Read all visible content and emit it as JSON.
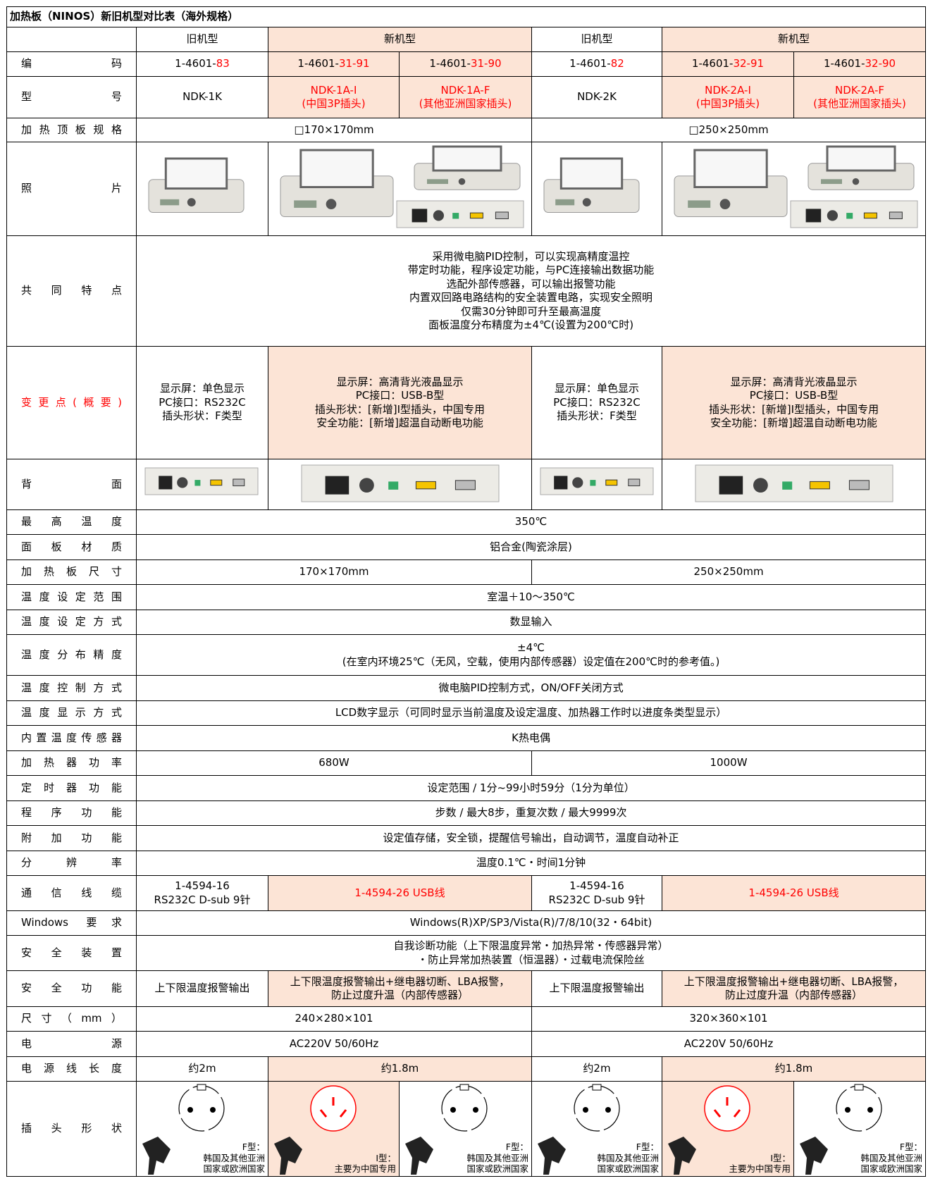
{
  "title": "加热板（NINOS）新旧机型对比表（海外规格）",
  "table": {
    "rows": [
      {
        "cells": [
          "旧机型",
          "新机型",
          "旧机型",
          "新机型"
        ]
      },
      {
        "label": "编码",
        "cells": [
          {
            "prefix": "1-4601-",
            "suffix": "83"
          },
          {
            "prefix": "1-4601-",
            "suffix": "31-91"
          },
          {
            "prefix": "1-4601-",
            "suffix": "31-90"
          },
          {
            "prefix": "1-4601-",
            "suffix": "82"
          },
          {
            "prefix": "1-4601-",
            "suffix": "32-91"
          },
          {
            "prefix": "1-4601-",
            "suffix": "32-90"
          }
        ]
      },
      {
        "label": "型号",
        "cells": [
          "NDK-1K",
          "NDK-1A-I\n(中国3P插头)",
          "NDK-1A-F\n(其他亚洲国家插头)",
          "NDK-2K",
          "NDK-2A-I\n(中国3P插头)",
          "NDK-2A-F\n(其他亚洲国家插头)"
        ]
      },
      {
        "label": "加热顶板规格",
        "cells": [
          "□170×170mm",
          "□250×250mm"
        ]
      },
      {
        "label": "照片"
      },
      {
        "label": "共同特点",
        "cells": [
          "采用微电脑PID控制，可以实现高精度温控\n带定时功能，程序设定功能，与PC连接输出数据功能\n选配外部传感器，可以输出报警功能\n内置双回路电路结构的安全装置电路，实现安全照明\n仅需30分钟即可升至最高温度\n面板温度分布精度为±4℃(设置为200℃时)"
        ]
      },
      {
        "label": "变更点(概要)",
        "cells": [
          "显示屏：单色显示\nPC接口：RS232C\n插头形状：F类型",
          "显示屏：高清背光液晶显示\nPC接口：USB-B型\n插头形状：[新增]I型插头，中国专用\n安全功能：[新增]超温自动断电功能",
          "显示屏：单色显示\nPC接口：RS232C\n插头形状：F类型",
          "显示屏：高清背光液晶显示\nPC接口：USB-B型\n插头形状：[新增]I型插头，中国专用\n安全功能：[新增]超温自动断电功能"
        ]
      },
      {
        "label": "背面"
      },
      {
        "label": "最高温度",
        "cells": [
          "350℃"
        ]
      },
      {
        "label": "面板材质",
        "cells": [
          "铝合金(陶瓷涂层)"
        ]
      },
      {
        "label": "加热板尺寸",
        "cells": [
          "170×170mm",
          "250×250mm"
        ]
      },
      {
        "label": "温度设定范围",
        "cells": [
          "室温＋10～350℃"
        ]
      },
      {
        "label": "温度设定方式",
        "cells": [
          "数显输入"
        ]
      },
      {
        "label": "温度分布精度",
        "cells": [
          "±4℃\n(在室内环境25℃（无风，空载，使用内部传感器）设定值在200℃时的参考值。)"
        ]
      },
      {
        "label": "温度控制方式",
        "cells": [
          "微电脑PID控制方式，ON/OFF关闭方式"
        ]
      },
      {
        "label": "温度显示方式",
        "cells": [
          "LCD数字显示（可同时显示当前温度及设定温度、加热器工作时以进度条类型显示）"
        ]
      },
      {
        "label": "内置温度传感器",
        "cells": [
          "K热电偶"
        ]
      },
      {
        "label": "加热器功率",
        "cells": [
          "680W",
          "1000W"
        ]
      },
      {
        "label": "定时器功能",
        "cells": [
          "设定范围 / 1分~99小时59分（1分为单位）"
        ]
      },
      {
        "label": "程序功能",
        "cells": [
          "步数 / 最大8步，重复次数 / 最大9999次"
        ]
      },
      {
        "label": "附加功能",
        "cells": [
          "设定值存储，安全锁，提醒信号输出，自动调节，温度自动补正"
        ]
      },
      {
        "label": "分辨率",
        "cells": [
          "温度0.1℃・时间1分钟"
        ]
      },
      {
        "label": "通信线缆",
        "cells": [
          "1-4594-16\nRS232C D-sub 9针",
          "1-4594-26 USB线",
          "1-4594-16\nRS232C D-sub 9针",
          "1-4594-26 USB线"
        ]
      },
      {
        "label": "Windows 要求",
        "cells": [
          "Windows(R)XP/SP3/Vista(R)/7/8/10(32・64bit)"
        ]
      },
      {
        "label": "安全装置",
        "cells": [
          "自我诊断功能（上下限温度异常・加热异常・传感器异常）\n・防止异常加热装置（恒温器）・过载电流保险丝"
        ]
      },
      {
        "label": "安全功能",
        "cells": [
          "上下限温度报警输出",
          "上下限温度报警输出+继电器切断、LBA报警，\n防止过度升温（内部传感器）",
          "上下限温度报警输出",
          "上下限温度报警输出+继电器切断、LBA报警，\n防止过度升温（内部传感器）"
        ]
      },
      {
        "label": "尺寸（mm）",
        "cells": [
          "240×280×101",
          "320×360×101"
        ]
      },
      {
        "label": "电源",
        "cells": [
          "AC220V 50/60Hz",
          "AC220V 50/60Hz"
        ]
      },
      {
        "label": "电源线长度",
        "cells": [
          "约2m",
          "约1.8m",
          "约2m",
          "约1.8m"
        ]
      },
      {
        "label": "插头形状",
        "cells": [
          {
            "type": "F型：",
            "desc": "韩国及其他亚洲\n国家或欧洲国家"
          },
          {
            "type": "I型：",
            "desc": "主要为中国专用"
          },
          {
            "type": "F型：",
            "desc": "韩国及其他亚洲\n国家或欧洲国家"
          },
          {
            "type": "F型：",
            "desc": "韩国及其他亚洲\n国家或欧洲国家"
          },
          {
            "type": "I型：",
            "desc": "主要为中国专用"
          },
          {
            "type": "F型：",
            "desc": "韩国及其他亚洲\n国家或欧洲国家"
          }
        ]
      }
    ]
  }
}
